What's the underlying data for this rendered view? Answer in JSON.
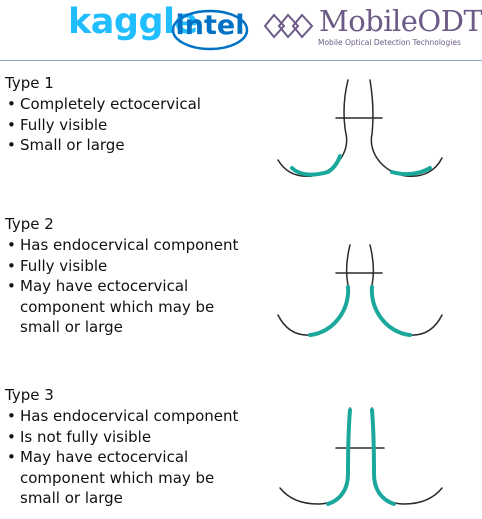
{
  "logos": {
    "kaggle": "kaggle",
    "intel": "intel",
    "mobileodt_name": "MobileODT",
    "mobileodt_tagline": "Mobile Optical Detection Technologies"
  },
  "colors": {
    "teal": "#1aa89c",
    "line": "#2a2a2a",
    "kaggle": "#20beff",
    "intel": "#0071c5",
    "mobileodt": "#6b5b86"
  },
  "types": [
    {
      "title": "Type 1",
      "bullets": [
        "Completely ectocervical",
        "Fully visible",
        "Small or large"
      ]
    },
    {
      "title": "Type 2",
      "bullets": [
        "Has endocervical component",
        "Fully visible",
        "May have ectocervical",
        "component which may be",
        "small or large"
      ]
    },
    {
      "title": "Type 3",
      "bullets": [
        "Has endocervical component",
        "Is not fully visible",
        "May have ectocervical",
        "component which may be",
        "small or large"
      ]
    }
  ]
}
